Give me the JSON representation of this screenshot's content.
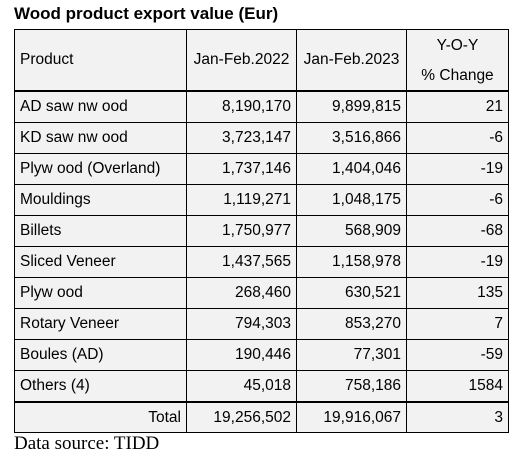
{
  "title": "Wood product export value (Eur)",
  "source": "Data source: TIDD",
  "chart_data": {
    "type": "table",
    "title": "Wood product export value (Eur)",
    "columns": {
      "product": "Product",
      "y2022": "Jan-Feb.2022",
      "y2023": "Jan-Feb.2023",
      "yoy_line1": "Y-O-Y",
      "yoy_line2": "% Change"
    },
    "rows": [
      {
        "product": "AD saw nw ood",
        "y2022": "8,190,170",
        "y2023": "9,899,815",
        "yoy": "21"
      },
      {
        "product": "KD saw nw ood",
        "y2022": "3,723,147",
        "y2023": "3,516,866",
        "yoy": "-6"
      },
      {
        "product": "Plyw ood (Overland)",
        "y2022": "1,737,146",
        "y2023": "1,404,046",
        "yoy": "-19"
      },
      {
        "product": "Mouldings",
        "y2022": "1,119,271",
        "y2023": "1,048,175",
        "yoy": "-6"
      },
      {
        "product": "Billets",
        "y2022": "1,750,977",
        "y2023": "568,909",
        "yoy": "-68"
      },
      {
        "product": "Sliced Veneer",
        "y2022": "1,437,565",
        "y2023": "1,158,978",
        "yoy": "-19"
      },
      {
        "product": "Plyw ood",
        "y2022": "268,460",
        "y2023": "630,521",
        "yoy": "135"
      },
      {
        "product": "Rotary Veneer",
        "y2022": "794,303",
        "y2023": "853,270",
        "yoy": "7"
      },
      {
        "product": "Boules (AD)",
        "y2022": "190,446",
        "y2023": "77,301",
        "yoy": "-59"
      },
      {
        "product": "Others (4)",
        "y2022": "45,018",
        "y2023": "758,186",
        "yoy": "1584"
      }
    ],
    "total": {
      "label": "Total",
      "y2022": "19,256,502",
      "y2023": "19,916,067",
      "yoy": "3"
    }
  }
}
